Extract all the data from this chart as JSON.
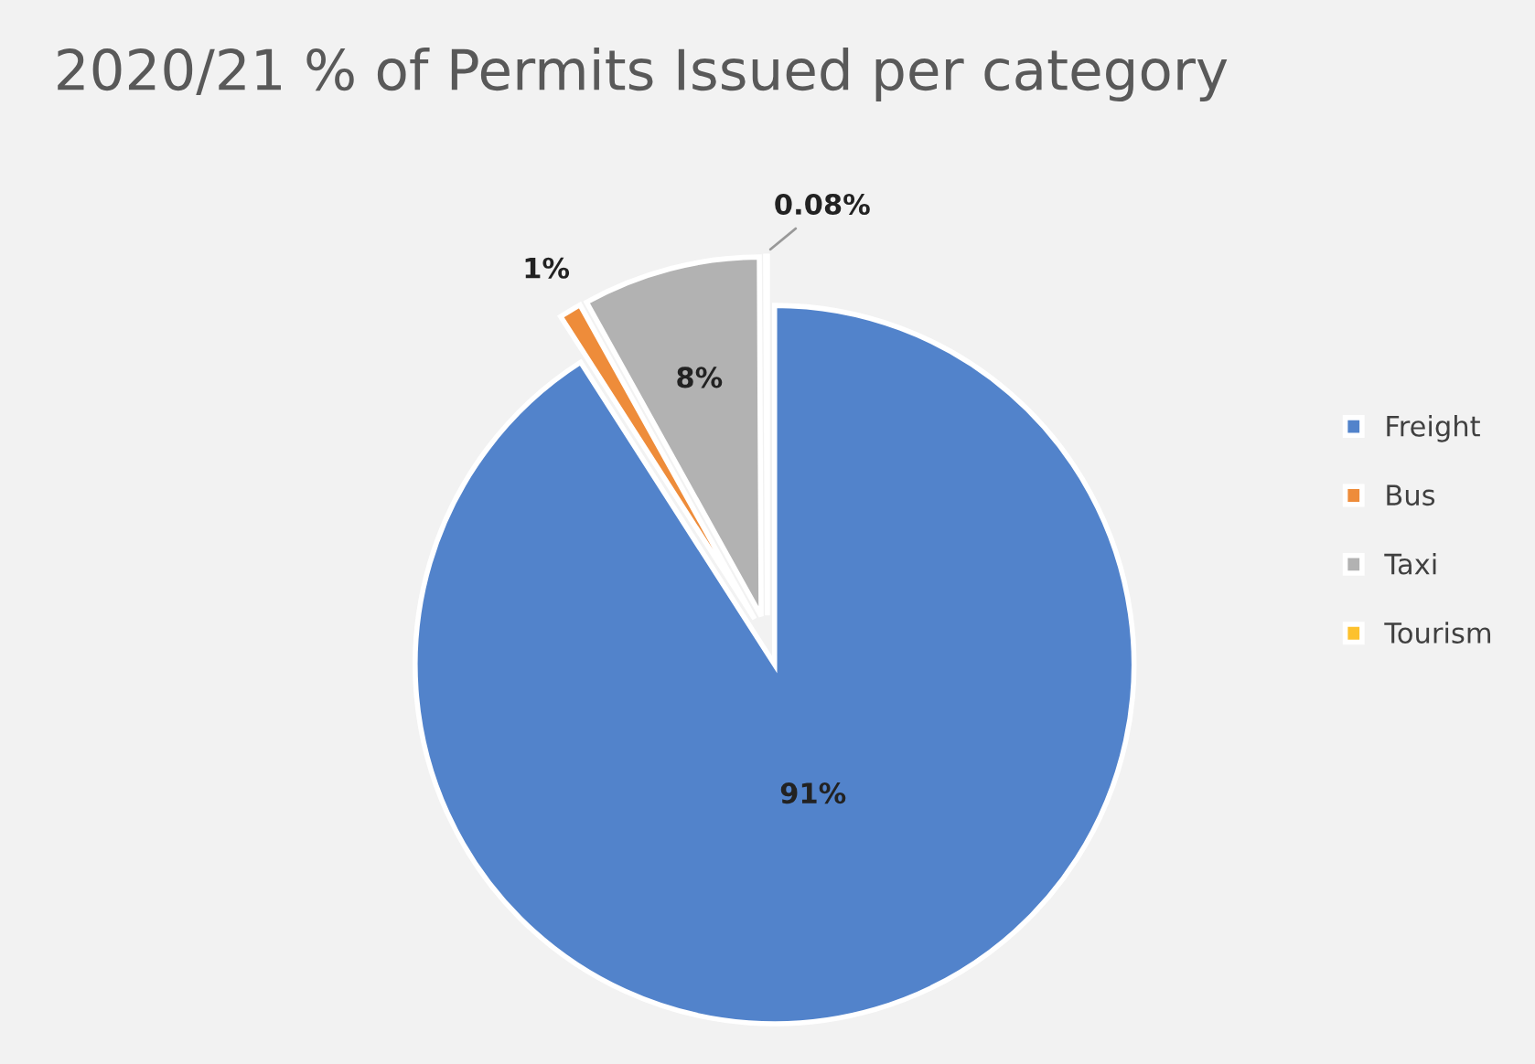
{
  "chart_data": {
    "type": "pie",
    "title": "2020/21 % of Permits Issued per category",
    "categories": [
      "Freight",
      "Bus",
      "Taxi",
      "Tourism"
    ],
    "values": [
      91,
      1,
      8,
      0.08
    ],
    "colors": [
      "#5283cb",
      "#ee8c3a",
      "#b2b2b2",
      "#fdc12d"
    ],
    "value_labels": [
      "91%",
      "1%",
      "8%",
      "0.08%"
    ],
    "legend": "right"
  }
}
